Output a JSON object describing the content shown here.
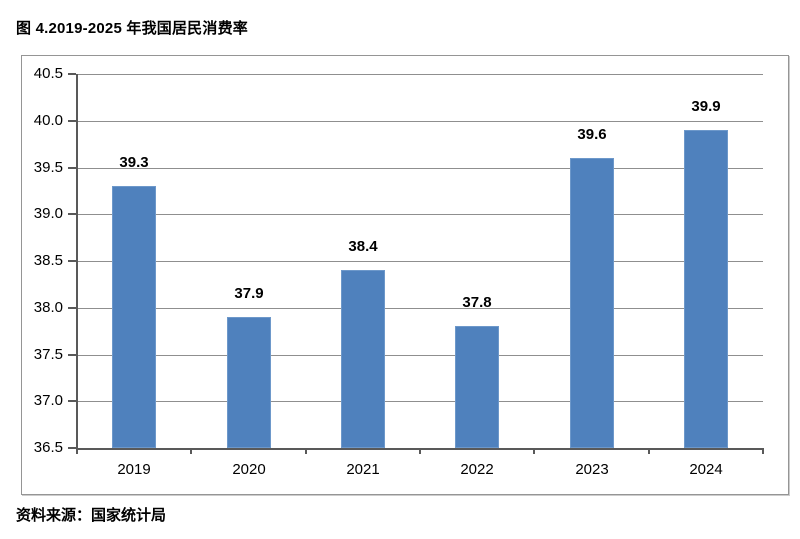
{
  "title": "图 4.2019-2025 年我国居民消费率",
  "source": "资料来源：国家统计局",
  "chart_data": {
    "type": "bar",
    "title": "图 4.2019-2025 年我国居民消费率",
    "categories": [
      "2019",
      "2020",
      "2021",
      "2022",
      "2023",
      "2024"
    ],
    "values": [
      39.3,
      37.9,
      38.4,
      37.8,
      39.6,
      39.9
    ],
    "value_labels": [
      "39.3",
      "37.9",
      "38.4",
      "37.8",
      "39.6",
      "39.9"
    ],
    "xlabel": "",
    "ylabel": "",
    "ylim": [
      36.5,
      40.5
    ],
    "ytick_step": 0.5,
    "yticks": [
      "40.5",
      "40.0",
      "39.5",
      "39.0",
      "38.5",
      "38.0",
      "37.5",
      "37.0",
      "36.5"
    ],
    "grid": true,
    "legend_position": "none",
    "colors": {
      "bar_fill": "#4F81BD",
      "bar_border": "#6D98CA",
      "gridline": "#8f8f8f",
      "axis": "#595959",
      "frame_border": "#959595",
      "label_text": "#000000"
    },
    "source_note": "资料来源：国家统计局"
  }
}
